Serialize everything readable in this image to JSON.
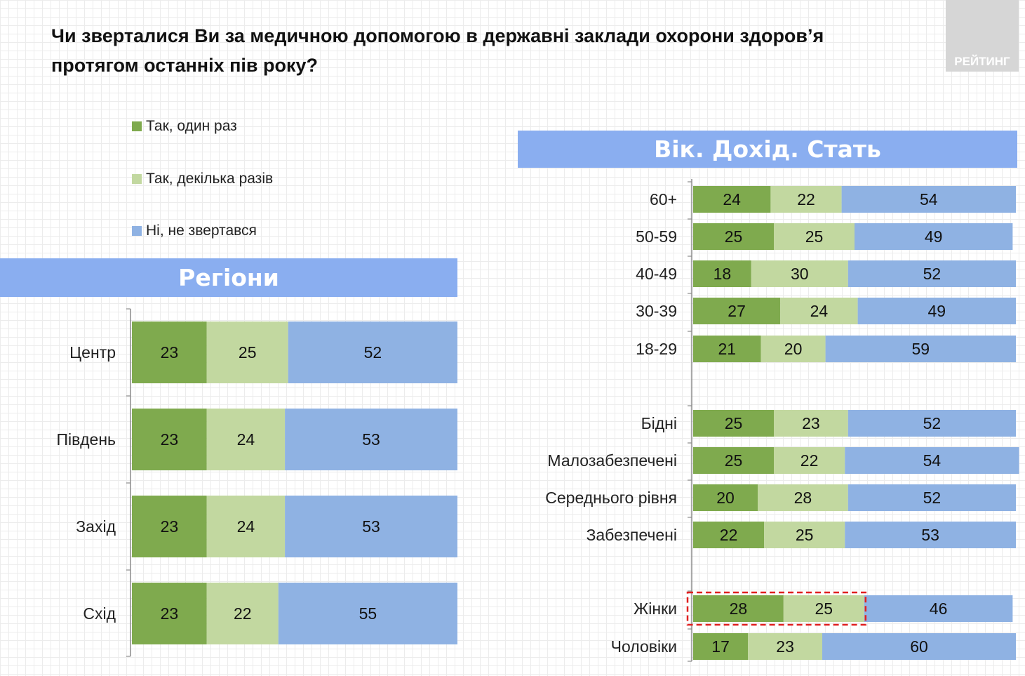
{
  "title": "Чи зверталися Ви за медичною допомогою в державні заклади охорони здоров’я протягом останніх пів року?",
  "logo_text": "РЕЙТИНГ",
  "colors": {
    "once": "#7faa4e",
    "several": "#c2d8a0",
    "no": "#8fb2e3",
    "banner": "#8aaef0",
    "highlight": "#e02020"
  },
  "legend": [
    {
      "label": "Так, один раз",
      "color": "#7faa4e"
    },
    {
      "label": "Так, декілька разів",
      "color": "#c2d8a0"
    },
    {
      "label": "Ні, не звертався",
      "color": "#8fb2e3"
    }
  ],
  "chart_data": [
    {
      "type": "bar",
      "orientation": "horizontal",
      "stacked": true,
      "title": "Регіони",
      "categories": [
        "Центр",
        "Південь",
        "Захід",
        "Схід"
      ],
      "series": [
        {
          "name": "Так, один раз",
          "values": [
            23,
            23,
            23,
            23
          ]
        },
        {
          "name": "Так, декілька разів",
          "values": [
            25,
            24,
            24,
            22
          ]
        },
        {
          "name": "Ні, не звертався",
          "values": [
            52,
            53,
            53,
            55
          ]
        }
      ],
      "xlim": [
        0,
        100
      ]
    },
    {
      "type": "bar",
      "orientation": "horizontal",
      "stacked": true,
      "title": "Вік. Дохід. Стать",
      "categories": [
        "60+",
        "50-59",
        "40-49",
        "30-39",
        "18-29",
        "Бідні",
        "Малозабезпечені",
        "Середнього рівня",
        "Забезпечені",
        "Жінки",
        "Чоловіки"
      ],
      "series": [
        {
          "name": "Так, один раз",
          "values": [
            24,
            25,
            18,
            27,
            21,
            25,
            25,
            20,
            22,
            28,
            17
          ]
        },
        {
          "name": "Так, декілька разів",
          "values": [
            22,
            25,
            30,
            24,
            20,
            23,
            22,
            28,
            25,
            25,
            23
          ]
        },
        {
          "name": "Ні, не звертався",
          "values": [
            54,
            49,
            52,
            49,
            59,
            52,
            54,
            52,
            53,
            46,
            60
          ]
        }
      ],
      "highlighted_category": "Жінки",
      "xlim": [
        0,
        100
      ]
    }
  ]
}
